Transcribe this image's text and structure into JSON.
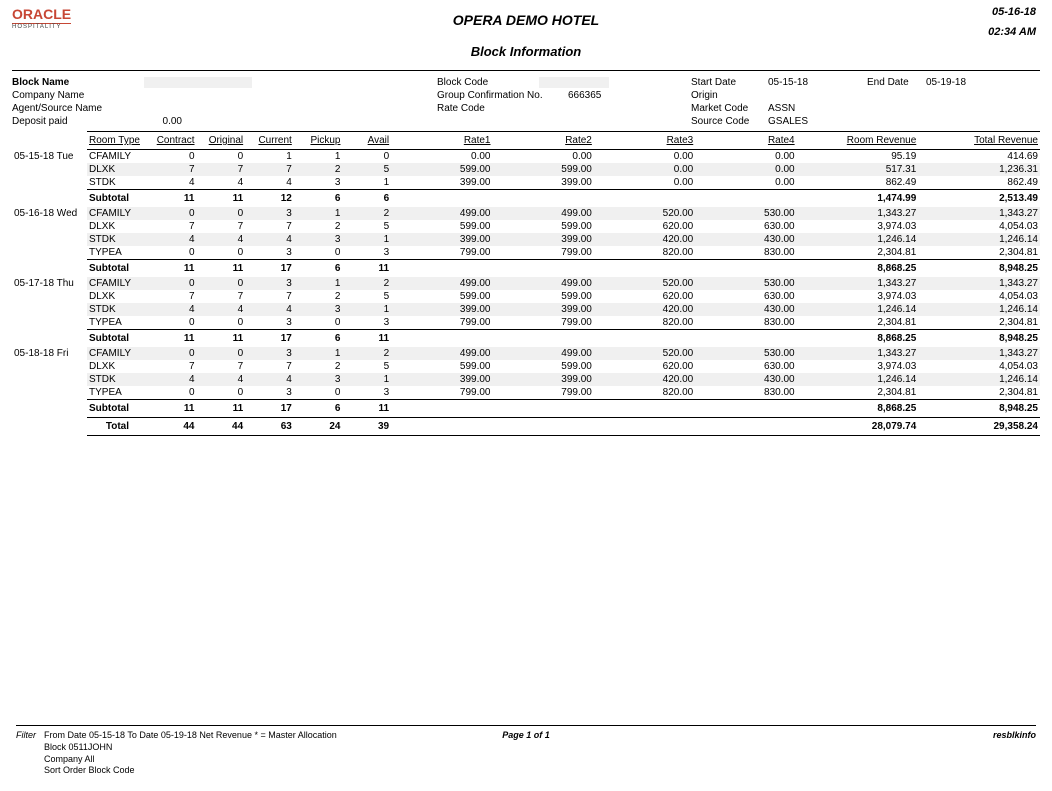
{
  "header": {
    "logo_main": "ORACLE",
    "logo_sub": "HOSPITALITY",
    "hotel_name": "OPERA DEMO HOTEL",
    "report_title": "Block Information",
    "date": "05-16-18",
    "time": "02:34 AM"
  },
  "block": {
    "block_name_label": "Block Name",
    "company_name_label": "Company Name",
    "agent_source_label": "Agent/Source Name",
    "deposit_paid_label": "Deposit paid",
    "deposit_paid_value": "0.00",
    "block_code_label": "Block Code",
    "group_conf_label": "Group Confirmation No.",
    "group_conf_value": "666365",
    "rate_code_label": "Rate Code",
    "start_date_label": "Start Date",
    "start_date_value": "05-15-18",
    "origin_label": "Origin",
    "market_code_label": "Market Code",
    "market_code_value": "ASSN",
    "source_code_label": "Source Code",
    "source_code_value": "GSALES",
    "end_date_label": "End Date",
    "end_date_value": "05-19-18"
  },
  "columns": {
    "room_type": "Room Type",
    "contract": "Contract",
    "original": "Original",
    "current": "Current",
    "pickup": "Pickup",
    "avail": "Avail",
    "rate1": "Rate1",
    "rate2": "Rate2",
    "rate3": "Rate3",
    "rate4": "Rate4",
    "room_revenue": "Room Revenue",
    "total_revenue": "Total Revenue"
  },
  "days": [
    {
      "date_label": "05-15-18  Tue",
      "rows": [
        {
          "shade": false,
          "room_type": "CFAMILY",
          "contract": "0",
          "original": "0",
          "current": "1",
          "pickup": "1",
          "avail": "0",
          "rate1": "0.00",
          "rate2": "0.00",
          "rate3": "0.00",
          "rate4": "0.00",
          "room_rev": "95.19",
          "total_rev": "414.69"
        },
        {
          "shade": true,
          "room_type": "DLXK",
          "contract": "7",
          "original": "7",
          "current": "7",
          "pickup": "2",
          "avail": "5",
          "rate1": "599.00",
          "rate2": "599.00",
          "rate3": "0.00",
          "rate4": "0.00",
          "room_rev": "517.31",
          "total_rev": "1,236.31"
        },
        {
          "shade": false,
          "room_type": "STDK",
          "contract": "4",
          "original": "4",
          "current": "4",
          "pickup": "3",
          "avail": "1",
          "rate1": "399.00",
          "rate2": "399.00",
          "rate3": "0.00",
          "rate4": "0.00",
          "room_rev": "862.49",
          "total_rev": "862.49"
        }
      ],
      "subtotal": {
        "label": "Subtotal",
        "contract": "11",
        "original": "11",
        "current": "12",
        "pickup": "6",
        "avail": "6",
        "room_rev": "1,474.99",
        "total_rev": "2,513.49"
      }
    },
    {
      "date_label": "05-16-18  Wed",
      "rows": [
        {
          "shade": true,
          "room_type": "CFAMILY",
          "contract": "0",
          "original": "0",
          "current": "3",
          "pickup": "1",
          "avail": "2",
          "rate1": "499.00",
          "rate2": "499.00",
          "rate3": "520.00",
          "rate4": "530.00",
          "room_rev": "1,343.27",
          "total_rev": "1,343.27"
        },
        {
          "shade": false,
          "room_type": "DLXK",
          "contract": "7",
          "original": "7",
          "current": "7",
          "pickup": "2",
          "avail": "5",
          "rate1": "599.00",
          "rate2": "599.00",
          "rate3": "620.00",
          "rate4": "630.00",
          "room_rev": "3,974.03",
          "total_rev": "4,054.03"
        },
        {
          "shade": true,
          "room_type": "STDK",
          "contract": "4",
          "original": "4",
          "current": "4",
          "pickup": "3",
          "avail": "1",
          "rate1": "399.00",
          "rate2": "399.00",
          "rate3": "420.00",
          "rate4": "430.00",
          "room_rev": "1,246.14",
          "total_rev": "1,246.14"
        },
        {
          "shade": false,
          "room_type": "TYPEA",
          "contract": "0",
          "original": "0",
          "current": "3",
          "pickup": "0",
          "avail": "3",
          "rate1": "799.00",
          "rate2": "799.00",
          "rate3": "820.00",
          "rate4": "830.00",
          "room_rev": "2,304.81",
          "total_rev": "2,304.81"
        }
      ],
      "subtotal": {
        "label": "Subtotal",
        "contract": "11",
        "original": "11",
        "current": "17",
        "pickup": "6",
        "avail": "11",
        "room_rev": "8,868.25",
        "total_rev": "8,948.25"
      }
    },
    {
      "date_label": "05-17-18  Thu",
      "rows": [
        {
          "shade": true,
          "room_type": "CFAMILY",
          "contract": "0",
          "original": "0",
          "current": "3",
          "pickup": "1",
          "avail": "2",
          "rate1": "499.00",
          "rate2": "499.00",
          "rate3": "520.00",
          "rate4": "530.00",
          "room_rev": "1,343.27",
          "total_rev": "1,343.27"
        },
        {
          "shade": false,
          "room_type": "DLXK",
          "contract": "7",
          "original": "7",
          "current": "7",
          "pickup": "2",
          "avail": "5",
          "rate1": "599.00",
          "rate2": "599.00",
          "rate3": "620.00",
          "rate4": "630.00",
          "room_rev": "3,974.03",
          "total_rev": "4,054.03"
        },
        {
          "shade": true,
          "room_type": "STDK",
          "contract": "4",
          "original": "4",
          "current": "4",
          "pickup": "3",
          "avail": "1",
          "rate1": "399.00",
          "rate2": "399.00",
          "rate3": "420.00",
          "rate4": "430.00",
          "room_rev": "1,246.14",
          "total_rev": "1,246.14"
        },
        {
          "shade": false,
          "room_type": "TYPEA",
          "contract": "0",
          "original": "0",
          "current": "3",
          "pickup": "0",
          "avail": "3",
          "rate1": "799.00",
          "rate2": "799.00",
          "rate3": "820.00",
          "rate4": "830.00",
          "room_rev": "2,304.81",
          "total_rev": "2,304.81"
        }
      ],
      "subtotal": {
        "label": "Subtotal",
        "contract": "11",
        "original": "11",
        "current": "17",
        "pickup": "6",
        "avail": "11",
        "room_rev": "8,868.25",
        "total_rev": "8,948.25"
      }
    },
    {
      "date_label": "05-18-18  Fri",
      "rows": [
        {
          "shade": true,
          "room_type": "CFAMILY",
          "contract": "0",
          "original": "0",
          "current": "3",
          "pickup": "1",
          "avail": "2",
          "rate1": "499.00",
          "rate2": "499.00",
          "rate3": "520.00",
          "rate4": "530.00",
          "room_rev": "1,343.27",
          "total_rev": "1,343.27"
        },
        {
          "shade": false,
          "room_type": "DLXK",
          "contract": "7",
          "original": "7",
          "current": "7",
          "pickup": "2",
          "avail": "5",
          "rate1": "599.00",
          "rate2": "599.00",
          "rate3": "620.00",
          "rate4": "630.00",
          "room_rev": "3,974.03",
          "total_rev": "4,054.03"
        },
        {
          "shade": true,
          "room_type": "STDK",
          "contract": "4",
          "original": "4",
          "current": "4",
          "pickup": "3",
          "avail": "1",
          "rate1": "399.00",
          "rate2": "399.00",
          "rate3": "420.00",
          "rate4": "430.00",
          "room_rev": "1,246.14",
          "total_rev": "1,246.14"
        },
        {
          "shade": false,
          "room_type": "TYPEA",
          "contract": "0",
          "original": "0",
          "current": "3",
          "pickup": "0",
          "avail": "3",
          "rate1": "799.00",
          "rate2": "799.00",
          "rate3": "820.00",
          "rate4": "830.00",
          "room_rev": "2,304.81",
          "total_rev": "2,304.81"
        }
      ],
      "subtotal": {
        "label": "Subtotal",
        "contract": "11",
        "original": "11",
        "current": "17",
        "pickup": "6",
        "avail": "11",
        "room_rev": "8,868.25",
        "total_rev": "8,948.25"
      }
    }
  ],
  "total": {
    "label": "Total",
    "contract": "44",
    "original": "44",
    "current": "63",
    "pickup": "24",
    "avail": "39",
    "room_rev": "28,079.74",
    "total_rev": "29,358.24"
  },
  "footer": {
    "filter_label": "Filter",
    "line1": "From Date 05-15-18   To Date 05-19-18   Net Revenue   * = Master Allocation",
    "line2": "Block 0511JOHN",
    "line3": "Company All",
    "line4": "Sort Order Block Code",
    "page": "Page 1 of 1",
    "report_id": "resblkinfo"
  }
}
